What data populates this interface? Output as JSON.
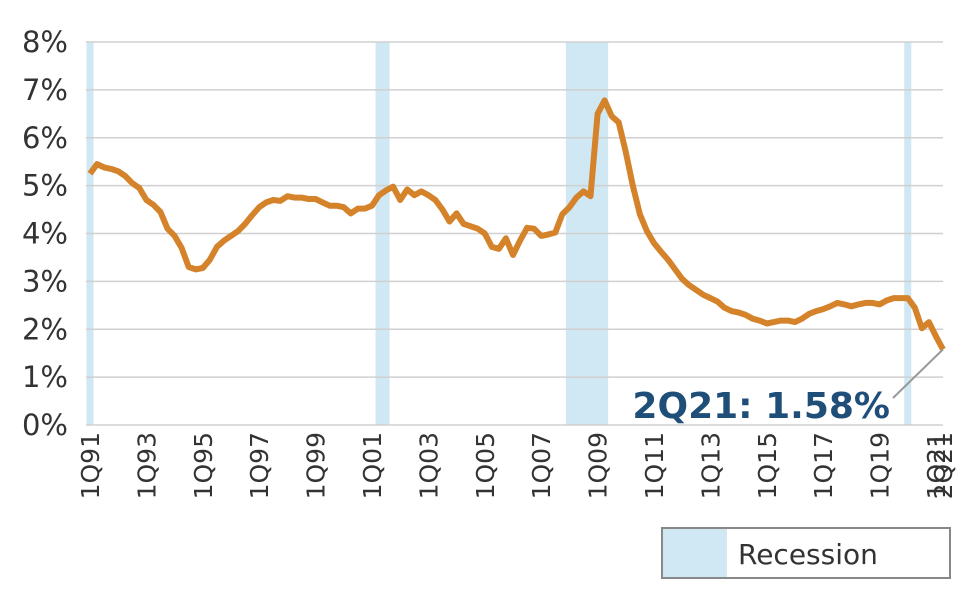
{
  "chart_data": {
    "type": "line",
    "color": "#d4832b",
    "categories": [
      "1Q91",
      null,
      null,
      null,
      null,
      null,
      null,
      null,
      "1Q93",
      null,
      null,
      null,
      null,
      null,
      null,
      null,
      "1Q95",
      null,
      null,
      null,
      null,
      null,
      null,
      null,
      "1Q97",
      null,
      null,
      null,
      null,
      null,
      null,
      null,
      "1Q99",
      null,
      null,
      null,
      null,
      null,
      null,
      null,
      "1Q01",
      null,
      null,
      null,
      null,
      null,
      null,
      null,
      "1Q03",
      null,
      null,
      null,
      null,
      null,
      null,
      null,
      "1Q05",
      null,
      null,
      null,
      null,
      null,
      null,
      null,
      "1Q07",
      null,
      null,
      null,
      null,
      null,
      null,
      null,
      "1Q09",
      null,
      null,
      null,
      null,
      null,
      null,
      null,
      "1Q11",
      null,
      null,
      null,
      null,
      null,
      null,
      null,
      "1Q13",
      null,
      null,
      null,
      null,
      null,
      null,
      null,
      "1Q15",
      null,
      null,
      null,
      null,
      null,
      null,
      null,
      "1Q17",
      null,
      null,
      null,
      null,
      null,
      null,
      null,
      "1Q19",
      null,
      null,
      null,
      null,
      null,
      null,
      null,
      "1Q21",
      "2Q21"
    ],
    "values": [
      5.25,
      5.45,
      5.38,
      5.35,
      5.3,
      5.2,
      5.05,
      4.95,
      4.7,
      4.6,
      4.45,
      4.1,
      3.95,
      3.7,
      3.3,
      3.25,
      3.28,
      3.45,
      3.72,
      3.85,
      3.95,
      4.05,
      4.2,
      4.38,
      4.55,
      4.65,
      4.7,
      4.68,
      4.78,
      4.75,
      4.75,
      4.72,
      4.72,
      4.65,
      4.58,
      4.58,
      4.55,
      4.42,
      4.52,
      4.52,
      4.58,
      4.8,
      4.9,
      4.98,
      4.7,
      4.92,
      4.8,
      4.88,
      4.8,
      4.7,
      4.5,
      4.25,
      4.42,
      4.2,
      4.15,
      4.1,
      4.0,
      3.72,
      3.68,
      3.9,
      3.55,
      3.85,
      4.12,
      4.1,
      3.95,
      3.98,
      4.02,
      4.4,
      4.55,
      4.75,
      4.88,
      4.78,
      6.5,
      6.78,
      6.45,
      6.32,
      5.7,
      5.0,
      4.4,
      4.05,
      3.8,
      3.62,
      3.45,
      3.25,
      3.05,
      2.92,
      2.82,
      2.72,
      2.65,
      2.58,
      2.45,
      2.38,
      2.35,
      2.3,
      2.22,
      2.18,
      2.12,
      2.15,
      2.18,
      2.18,
      2.15,
      2.22,
      2.32,
      2.38,
      2.42,
      2.48,
      2.55,
      2.52,
      2.48,
      2.52,
      2.55,
      2.55,
      2.52,
      2.6,
      2.65,
      2.65,
      2.65,
      2.45,
      2.02,
      2.15,
      1.85,
      1.58
    ],
    "ylim": [
      0,
      8
    ],
    "yticks": [
      {
        "value": 0,
        "label": "0%"
      },
      {
        "value": 1,
        "label": "1%"
      },
      {
        "value": 2,
        "label": "2%"
      },
      {
        "value": 3,
        "label": "3%"
      },
      {
        "value": 4,
        "label": "4%"
      },
      {
        "value": 5,
        "label": "5%"
      },
      {
        "value": 6,
        "label": "6%"
      },
      {
        "value": 7,
        "label": "7%"
      },
      {
        "value": 8,
        "label": "8%"
      }
    ],
    "grid": true,
    "recession": {
      "name": "Recession",
      "color": "#cfe8f3",
      "periods": [
        [
          0,
          0
        ],
        [
          41,
          42
        ],
        [
          68,
          73
        ],
        [
          116,
          116
        ]
      ]
    },
    "annotation": {
      "text": "2Q21: 1.58%",
      "color": "#1f4e79"
    }
  }
}
